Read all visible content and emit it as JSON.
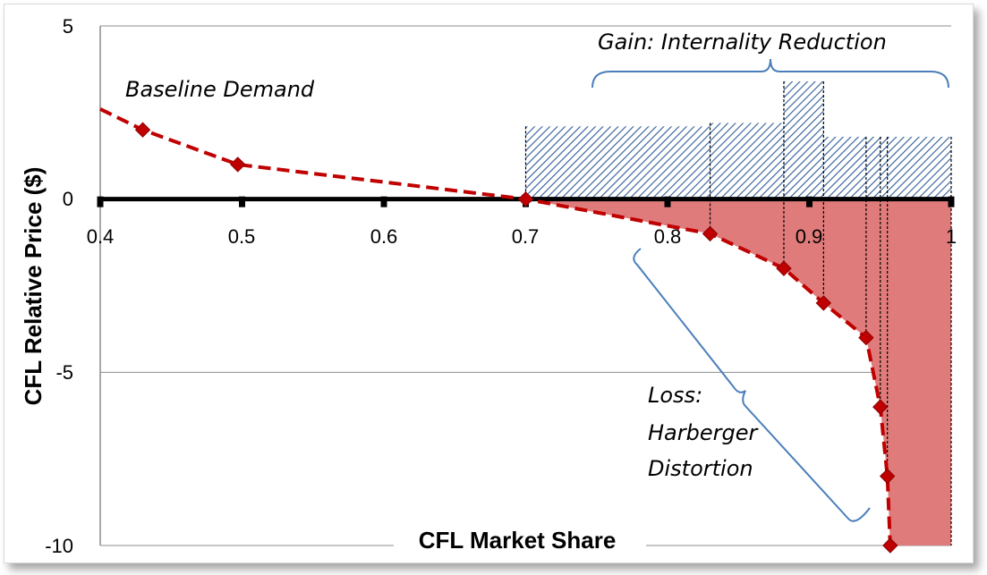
{
  "chart_data": {
    "type": "line",
    "xlabel": "CFL Market Share",
    "ylabel": "CFL Relative Price ($)",
    "xlim": [
      0.4,
      1.0
    ],
    "ylim": [
      -10,
      5
    ],
    "x_ticks": [
      "0.4",
      "0.5",
      "0.6",
      "0.7",
      "0.8",
      "0.9",
      "1"
    ],
    "y_ticks": [
      "5",
      "0",
      "-5",
      "-10"
    ],
    "grid": "horizontal",
    "series": [
      {
        "name": "Baseline Demand",
        "style": "dashed",
        "color": "#c00000",
        "marker": "diamond",
        "points": [
          {
            "x": 0.4,
            "y": 2.6,
            "marker": false
          },
          {
            "x": 0.43,
            "y": 2.0
          },
          {
            "x": 0.497,
            "y": 1.0
          },
          {
            "x": 0.7,
            "y": 0.0
          },
          {
            "x": 0.83,
            "y": -1.0
          },
          {
            "x": 0.882,
            "y": -2.0
          },
          {
            "x": 0.91,
            "y": -3.0
          },
          {
            "x": 0.94,
            "y": -4.0
          },
          {
            "x": 0.95,
            "y": -6.0
          },
          {
            "x": 0.955,
            "y": -8.0
          },
          {
            "x": 0.957,
            "y": -10.0
          }
        ]
      }
    ],
    "gain_bars": [
      {
        "x0": 0.7,
        "x1": 0.83,
        "y": 2.1
      },
      {
        "x0": 0.83,
        "x1": 0.882,
        "y": 2.2
      },
      {
        "x0": 0.882,
        "x1": 0.91,
        "y": 3.4
      },
      {
        "x0": 0.91,
        "x1": 0.94,
        "y": 1.8
      },
      {
        "x0": 0.94,
        "x1": 0.95,
        "y": 1.8
      },
      {
        "x0": 0.95,
        "x1": 0.955,
        "y": 1.8
      },
      {
        "x0": 0.955,
        "x1": 1.0,
        "y": 1.8
      }
    ],
    "loss_region": {
      "x_end": 1.0,
      "color": "#e07b7b"
    },
    "gain_color": "#2e5c9a",
    "annotations": [
      {
        "text": "Baseline Demand"
      },
      {
        "text": "Gain: Internality Reduction"
      },
      {
        "text": "Loss:"
      },
      {
        "text": "Harberger"
      },
      {
        "text": "Distortion"
      }
    ]
  }
}
